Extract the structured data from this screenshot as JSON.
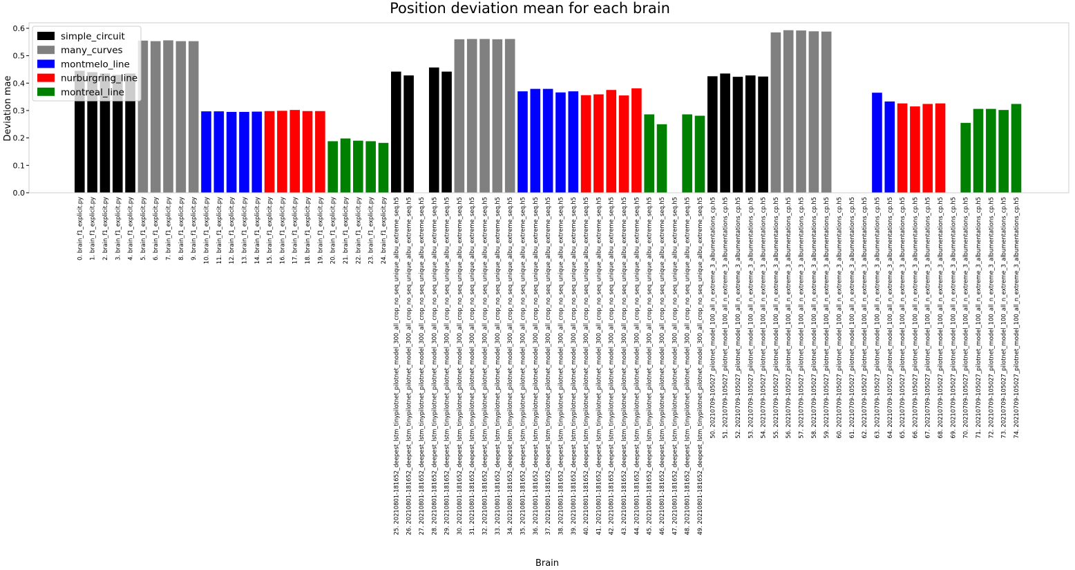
{
  "chart_data": {
    "type": "bar",
    "title": "Position deviation mean for each brain",
    "xlabel": "Brain",
    "ylabel": "Deviation mae",
    "ylim": [
      0,
      0.62
    ],
    "yticks": [
      "0.0",
      "0.1",
      "0.2",
      "0.3",
      "0.4",
      "0.5",
      "0.6"
    ],
    "grid": false,
    "legend_position": "top-left",
    "series": [
      {
        "name": "simple_circuit",
        "color": "#000000"
      },
      {
        "name": "many_curves",
        "color": "#808080"
      },
      {
        "name": "montmelo_line",
        "color": "#0000ff"
      },
      {
        "name": "nurburgring_line",
        "color": "#ff0000"
      },
      {
        "name": "montreal_line",
        "color": "#008000"
      }
    ],
    "bar_series": [
      0,
      0,
      0,
      0,
      0,
      1,
      1,
      1,
      1,
      1,
      2,
      2,
      2,
      2,
      2,
      3,
      3,
      3,
      3,
      3,
      4,
      4,
      4,
      4,
      4,
      0,
      0,
      0,
      0,
      0,
      1,
      1,
      1,
      1,
      1,
      2,
      2,
      2,
      2,
      2,
      3,
      3,
      3,
      3,
      3,
      4,
      4,
      4,
      4,
      4,
      0,
      0,
      0,
      0,
      0,
      1,
      1,
      1,
      1,
      1,
      2,
      2,
      2,
      2,
      2,
      3,
      3,
      3,
      3,
      3,
      4,
      4,
      4,
      4,
      4
    ],
    "values": [
      0.445,
      0.44,
      0.435,
      0.43,
      0.435,
      0.555,
      0.553,
      0.556,
      0.553,
      0.553,
      0.297,
      0.297,
      0.295,
      0.295,
      0.296,
      0.298,
      0.299,
      0.302,
      0.298,
      0.298,
      0.188,
      0.198,
      0.19,
      0.188,
      0.182,
      0.442,
      0.428,
      0,
      0.457,
      0.442,
      0.56,
      0.561,
      0.561,
      0.56,
      0.561,
      0.37,
      0.379,
      0.379,
      0.366,
      0.37,
      0.356,
      0.359,
      0.375,
      0.355,
      0.381,
      0.286,
      0.25,
      0,
      0.286,
      0.281,
      0.425,
      0.435,
      0.423,
      0.428,
      0.424,
      0.585,
      0.593,
      0.592,
      0.589,
      0.588,
      0,
      0,
      0,
      0.365,
      0.333,
      0.326,
      0.315,
      0.324,
      0.326,
      0,
      0.255,
      0.306,
      0.306,
      0.302,
      0.324
    ],
    "categories": [
      "0. brain_f1_explicit.py",
      "1. brain_f1_explicit.py",
      "2. brain_f1_explicit.py",
      "3. brain_f1_explicit.py",
      "4. brain_f1_explicit.py",
      "5. brain_f1_explicit.py",
      "6. brain_f1_explicit.py",
      "7. brain_f1_explicit.py",
      "8. brain_f1_explicit.py",
      "9. brain_f1_explicit.py",
      "10. brain_f1_explicit.py",
      "11. brain_f1_explicit.py",
      "12. brain_f1_explicit.py",
      "13. brain_f1_explicit.py",
      "14. brain_f1_explicit.py",
      "15. brain_f1_explicit.py",
      "16. brain_f1_explicit.py",
      "17. brain_f1_explicit.py",
      "18. brain_f1_explicit.py",
      "19. brain_f1_explicit.py",
      "20. brain_f1_explicit.py",
      "21. brain_f1_explicit.py",
      "22. brain_f1_explicit.py",
      "23. brain_f1_explicit.py",
      "24. brain_f1_explicit.py",
      "25. 20210801-181652_deepest_lstm_tinypilotnet_pilotnet_model_300_all_crop_no_seq_unique_albu_extreme_seq.h5",
      "26. 20210801-181652_deepest_lstm_tinypilotnet_pilotnet_model_300_all_crop_no_seq_unique_albu_extreme_seq.h5",
      "27. 20210801-181652_deepest_lstm_tinypilotnet_pilotnet_model_300_all_crop_no_seq_unique_albu_extreme_seq.h5",
      "28. 20210801-181652_deepest_lstm_tinypilotnet_pilotnet_model_300_all_crop_no_seq_unique_albu_extreme_seq.h5",
      "29. 20210801-181652_deepest_lstm_tinypilotnet_pilotnet_model_300_all_crop_no_seq_unique_albu_extreme_seq.h5",
      "30. 20210801-181652_deepest_lstm_tinypilotnet_pilotnet_model_300_all_crop_no_seq_unique_albu_extreme_seq.h5",
      "31. 20210801-181652_deepest_lstm_tinypilotnet_pilotnet_model_300_all_crop_no_seq_unique_albu_extreme_seq.h5",
      "32. 20210801-181652_deepest_lstm_tinypilotnet_pilotnet_model_300_all_crop_no_seq_unique_albu_extreme_seq.h5",
      "33. 20210801-181652_deepest_lstm_tinypilotnet_pilotnet_model_300_all_crop_no_seq_unique_albu_extreme_seq.h5",
      "34. 20210801-181652_deepest_lstm_tinypilotnet_pilotnet_model_300_all_crop_no_seq_unique_albu_extreme_seq.h5",
      "35. 20210801-181652_deepest_lstm_tinypilotnet_pilotnet_model_300_all_crop_no_seq_unique_albu_extreme_seq.h5",
      "36. 20210801-181652_deepest_lstm_tinypilotnet_pilotnet_model_300_all_crop_no_seq_unique_albu_extreme_seq.h5",
      "37. 20210801-181652_deepest_lstm_tinypilotnet_pilotnet_model_300_all_crop_no_seq_unique_albu_extreme_seq.h5",
      "38. 20210801-181652_deepest_lstm_tinypilotnet_pilotnet_model_300_all_crop_no_seq_unique_albu_extreme_seq.h5",
      "39. 20210801-181652_deepest_lstm_tinypilotnet_pilotnet_model_300_all_crop_no_seq_unique_albu_extreme_seq.h5",
      "40. 20210801-181652_deepest_lstm_tinypilotnet_pilotnet_model_300_all_crop_no_seq_unique_albu_extreme_seq.h5",
      "41. 20210801-181652_deepest_lstm_tinypilotnet_pilotnet_model_300_all_crop_no_seq_unique_albu_extreme_seq.h5",
      "42. 20210801-181652_deepest_lstm_tinypilotnet_pilotnet_model_300_all_crop_no_seq_unique_albu_extreme_seq.h5",
      "43. 20210801-181652_deepest_lstm_tinypilotnet_pilotnet_model_300_all_crop_no_seq_unique_albu_extreme_seq.h5",
      "44. 20210801-181652_deepest_lstm_tinypilotnet_pilotnet_model_300_all_crop_no_seq_unique_albu_extreme_seq.h5",
      "45. 20210801-181652_deepest_lstm_tinypilotnet_pilotnet_model_300_all_crop_no_seq_unique_albu_extreme_seq.h5",
      "46. 20210801-181652_deepest_lstm_tinypilotnet_pilotnet_model_300_all_crop_no_seq_unique_albu_extreme_seq.h5",
      "47. 20210801-181652_deepest_lstm_tinypilotnet_pilotnet_model_300_all_crop_no_seq_unique_albu_extreme_seq.h5",
      "48. 20210801-181652_deepest_lstm_tinypilotnet_pilotnet_model_300_all_crop_no_seq_unique_albu_extreme_seq.h5",
      "49. 20210801-181652_deepest_lstm_tinypilotnet_pilotnet_model_300_all_crop_no_seq_unique_albu_extreme_seq.h5",
      "50. 20210709-105027_pilotnet_model_100_all_n_extreme_3_albumentations_cp.h5",
      "51. 20210709-105027_pilotnet_model_100_all_n_extreme_3_albumentations_cp.h5",
      "52. 20210709-105027_pilotnet_model_100_all_n_extreme_3_albumentations_cp.h5",
      "53. 20210709-105027_pilotnet_model_100_all_n_extreme_3_albumentations_cp.h5",
      "54. 20210709-105027_pilotnet_model_100_all_n_extreme_3_albumentations_cp.h5",
      "55. 20210709-105027_pilotnet_model_100_all_n_extreme_3_albumentations_cp.h5",
      "56. 20210709-105027_pilotnet_model_100_all_n_extreme_3_albumentations_cp.h5",
      "57. 20210709-105027_pilotnet_model_100_all_n_extreme_3_albumentations_cp.h5",
      "58. 20210709-105027_pilotnet_model_100_all_n_extreme_3_albumentations_cp.h5",
      "59. 20210709-105027_pilotnet_model_100_all_n_extreme_3_albumentations_cp.h5",
      "60. 20210709-105027_pilotnet_model_100_all_n_extreme_3_albumentations_cp.h5",
      "61. 20210709-105027_pilotnet_model_100_all_n_extreme_3_albumentations_cp.h5",
      "62. 20210709-105027_pilotnet_model_100_all_n_extreme_3_albumentations_cp.h5",
      "63. 20210709-105027_pilotnet_model_100_all_n_extreme_3_albumentations_cp.h5",
      "64. 20210709-105027_pilotnet_model_100_all_n_extreme_3_albumentations_cp.h5",
      "65. 20210709-105027_pilotnet_model_100_all_n_extreme_3_albumentations_cp.h5",
      "66. 20210709-105027_pilotnet_model_100_all_n_extreme_3_albumentations_cp.h5",
      "67. 20210709-105027_pilotnet_model_100_all_n_extreme_3_albumentations_cp.h5",
      "68. 20210709-105027_pilotnet_model_100_all_n_extreme_3_albumentations_cp.h5",
      "69. 20210709-105027_pilotnet_model_100_all_n_extreme_3_albumentations_cp.h5",
      "70. 20210709-105027_pilotnet_model_100_all_n_extreme_3_albumentations_cp.h5",
      "71. 20210709-105027_pilotnet_model_100_all_n_extreme_3_albumentations_cp.h5",
      "72. 20210709-105027_pilotnet_model_100_all_n_extreme_3_albumentations_cp.h5",
      "73. 20210709-105027_pilotnet_model_100_all_n_extreme_3_albumentations_cp.h5",
      "74. 20210709-105027_pilotnet_model_100_all_n_extreme_3_albumentations_cp.h5"
    ]
  }
}
